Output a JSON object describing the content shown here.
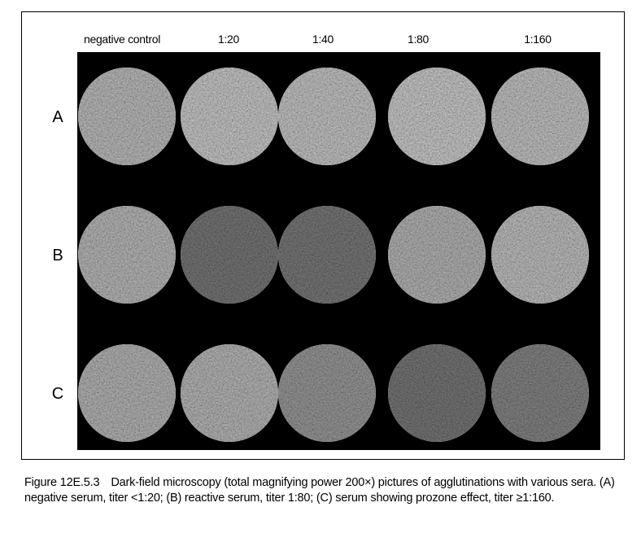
{
  "figure": {
    "column_headers": [
      "negative control",
      "1:20",
      "1:40",
      "1:80",
      "1:160"
    ],
    "row_labels": [
      "A",
      "B",
      "C"
    ],
    "caption": {
      "label": "Figure 12E.5.3",
      "text": "Dark-field microscopy (total magnifying power 200×) pictures of agglutinations with various sera. (A) negative serum, titer <1:20; (B) reactive serum, titer 1:80; (C) serum showing prozone effect, titer ≥1:160."
    }
  }
}
